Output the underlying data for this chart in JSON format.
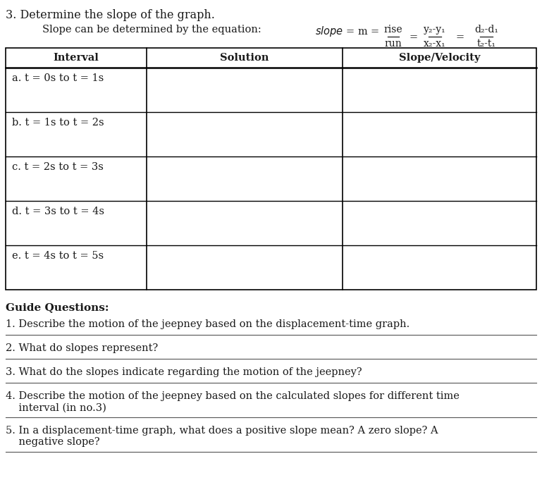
{
  "title_number": "3. ",
  "title_text": "Determine the slope of the graph.",
  "equation_label": "Slope can be determined by the equation:   ",
  "frac1_num": "rise",
  "frac1_den": "run",
  "frac2_num": "y₂-y₁",
  "frac2_den": "x₂-x₁",
  "frac3_num": "d₂-d₁",
  "frac3_den": "t₂-t₁",
  "col_headers": [
    "Interval",
    "Solution",
    "Slope/Velocity"
  ],
  "rows": [
    "a. t = 0s to t = 1s",
    "b. t = 1s to t = 2s",
    "c. t = 2s to t = 3s",
    "d. t = 3s to t = 4s",
    "e. t = 4s to t = 5s"
  ],
  "guide_questions_label": "Guide Questions:",
  "questions": [
    [
      "1.",
      " Describe the motion of the jeepney based on the displacement-time graph."
    ],
    [
      "2.",
      " What do slopes represent?"
    ],
    [
      "3.",
      " What do the slopes indicate regarding the motion of the jeepney?"
    ],
    [
      "4.",
      " Describe the motion of the jeepney based on the calculated slopes for different time\n    interval (in no.3)"
    ],
    [
      "5.",
      " In a displacement-time graph, what does a positive slope mean? A zero slope? A\n    negative slope?"
    ]
  ],
  "background_color": "#ffffff",
  "text_color": "#1a1a1a",
  "font_size_title": 11.5,
  "font_size_eq": 10.5,
  "font_size_table": 10.5,
  "font_size_guide": 10.5
}
